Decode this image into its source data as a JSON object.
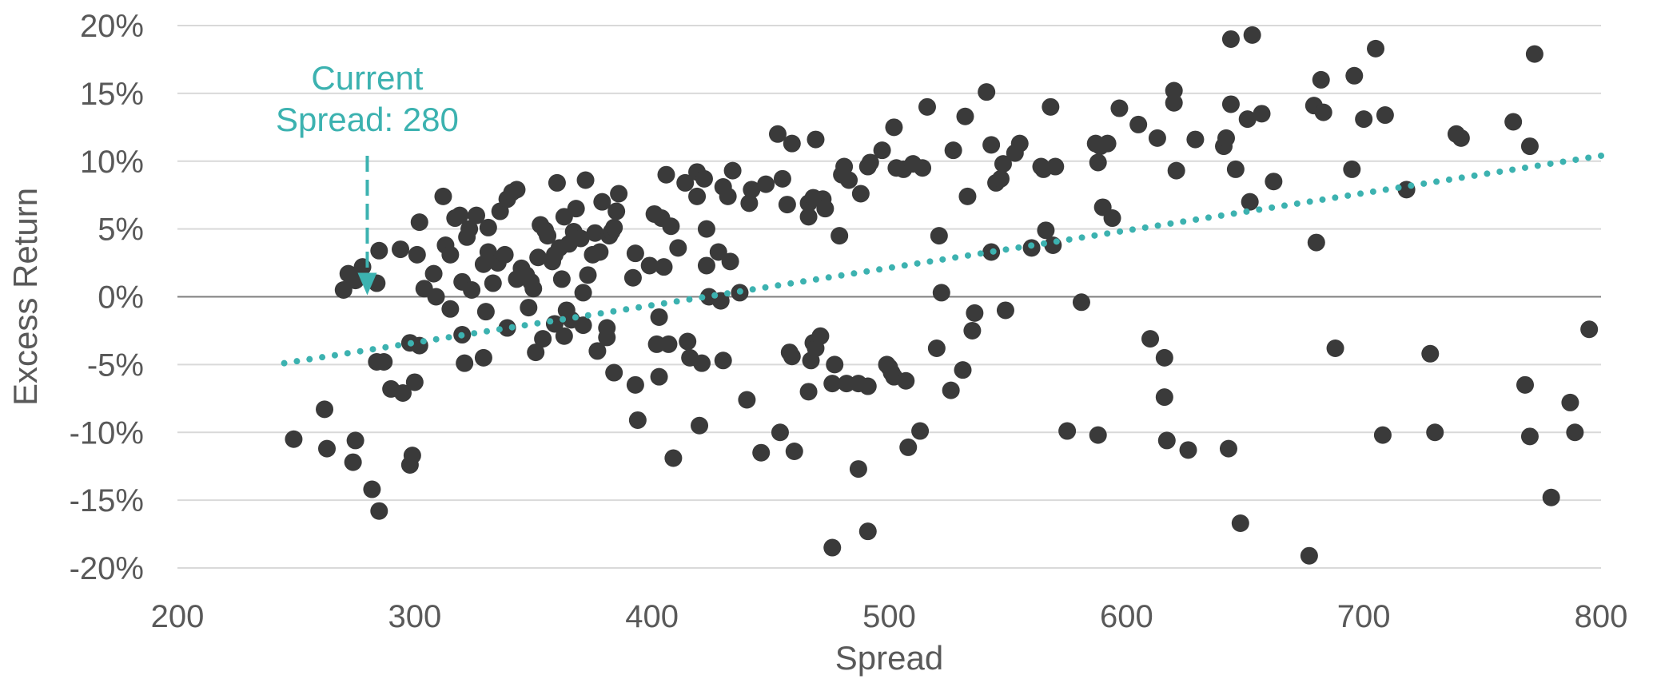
{
  "chart_data": {
    "type": "scatter",
    "title": "",
    "xlabel": "Spread",
    "ylabel": "Excess Return",
    "xlim": [
      200,
      800
    ],
    "ylim": [
      -20,
      20
    ],
    "x_ticks": [
      200,
      300,
      400,
      500,
      600,
      700,
      800
    ],
    "y_ticks": [
      20,
      15,
      10,
      5,
      0,
      -5,
      -10,
      -15,
      -20
    ],
    "y_tick_labels": [
      "20%",
      "15%",
      "10%",
      "5%",
      "0%",
      "-5%",
      "-10%",
      "-15%",
      "-20%"
    ],
    "grid": true,
    "colors": {
      "points": "#3a3a3a",
      "trend": "#3cb2b0",
      "grid": "#d9d9d9",
      "zero_line": "#7f7f7f",
      "annotation": "#3cb2b0",
      "text": "#595959"
    },
    "annotation": {
      "lines": [
        "Current",
        "Spread: 280"
      ],
      "x": 280,
      "arrow_from_y": 10,
      "arrow_to_y": 0
    },
    "trendline": {
      "style": "dotted",
      "x": [
        245,
        800
      ],
      "y": [
        -4.9,
        10.4
      ]
    },
    "points": [
      {
        "x": 270,
        "y": 0.5
      },
      {
        "x": 272,
        "y": 1.7
      },
      {
        "x": 275,
        "y": 1.2
      },
      {
        "x": 278,
        "y": 2.2
      },
      {
        "x": 284,
        "y": 1.0
      },
      {
        "x": 285,
        "y": 3.4
      },
      {
        "x": 294,
        "y": 3.5
      },
      {
        "x": 301,
        "y": 3.1
      },
      {
        "x": 302,
        "y": 5.5
      },
      {
        "x": 304,
        "y": 0.6
      },
      {
        "x": 308,
        "y": 1.7
      },
      {
        "x": 309,
        "y": 0.0
      },
      {
        "x": 312,
        "y": 7.4
      },
      {
        "x": 313,
        "y": 3.8
      },
      {
        "x": 315,
        "y": 3.1
      },
      {
        "x": 317,
        "y": 5.8
      },
      {
        "x": 319,
        "y": 6.0
      },
      {
        "x": 320,
        "y": 1.1
      },
      {
        "x": 322,
        "y": 4.4
      },
      {
        "x": 323,
        "y": 5.0
      },
      {
        "x": 324,
        "y": 0.5
      },
      {
        "x": 326,
        "y": 6.0
      },
      {
        "x": 329,
        "y": 2.4
      },
      {
        "x": 331,
        "y": 3.3
      },
      {
        "x": 331,
        "y": 5.1
      },
      {
        "x": 333,
        "y": 1.0
      },
      {
        "x": 335,
        "y": 2.5
      },
      {
        "x": 336,
        "y": 6.3
      },
      {
        "x": 338,
        "y": 3.1
      },
      {
        "x": 339,
        "y": 7.2
      },
      {
        "x": 341,
        "y": 7.7
      },
      {
        "x": 343,
        "y": 7.9
      },
      {
        "x": 343,
        "y": 1.3
      },
      {
        "x": 345,
        "y": 2.1
      },
      {
        "x": 347,
        "y": 1.6
      },
      {
        "x": 348,
        "y": -0.8
      },
      {
        "x": 349,
        "y": 1.1
      },
      {
        "x": 350,
        "y": 0.6
      },
      {
        "x": 352,
        "y": 2.9
      },
      {
        "x": 353,
        "y": 5.3
      },
      {
        "x": 355,
        "y": 4.9
      },
      {
        "x": 356,
        "y": 4.5
      },
      {
        "x": 358,
        "y": 2.6
      },
      {
        "x": 359,
        "y": 3.1
      },
      {
        "x": 360,
        "y": 8.4
      },
      {
        "x": 361,
        "y": 3.6
      },
      {
        "x": 362,
        "y": 1.3
      },
      {
        "x": 363,
        "y": 5.9
      },
      {
        "x": 364,
        "y": -1.0
      },
      {
        "x": 365,
        "y": 3.9
      },
      {
        "x": 366,
        "y": -1.7
      },
      {
        "x": 367,
        "y": 4.8
      },
      {
        "x": 368,
        "y": 6.5
      },
      {
        "x": 370,
        "y": 4.3
      },
      {
        "x": 371,
        "y": -2.1
      },
      {
        "x": 371,
        "y": 0.3
      },
      {
        "x": 372,
        "y": 8.6
      },
      {
        "x": 373,
        "y": 1.6
      },
      {
        "x": 375,
        "y": 3.1
      },
      {
        "x": 376,
        "y": 4.7
      },
      {
        "x": 377,
        "y": -4.0
      },
      {
        "x": 378,
        "y": 3.3
      },
      {
        "x": 379,
        "y": 7.0
      },
      {
        "x": 381,
        "y": -2.3
      },
      {
        "x": 381,
        "y": -3.0
      },
      {
        "x": 382,
        "y": 4.5
      },
      {
        "x": 383,
        "y": 4.8
      },
      {
        "x": 384,
        "y": 5.1
      },
      {
        "x": 385,
        "y": 6.3
      },
      {
        "x": 386,
        "y": 7.6
      },
      {
        "x": 384,
        "y": -5.6
      },
      {
        "x": 392,
        "y": 1.4
      },
      {
        "x": 393,
        "y": 3.2
      },
      {
        "x": 393,
        "y": -6.5
      },
      {
        "x": 394,
        "y": -9.1
      },
      {
        "x": 399,
        "y": 2.3
      },
      {
        "x": 401,
        "y": 6.1
      },
      {
        "x": 402,
        "y": -3.5
      },
      {
        "x": 403,
        "y": -1.5
      },
      {
        "x": 403,
        "y": -5.9
      },
      {
        "x": 404,
        "y": 5.8
      },
      {
        "x": 405,
        "y": 2.2
      },
      {
        "x": 406,
        "y": 9.0
      },
      {
        "x": 407,
        "y": -3.5
      },
      {
        "x": 408,
        "y": 5.2
      },
      {
        "x": 409,
        "y": -11.9
      },
      {
        "x": 411,
        "y": 3.6
      },
      {
        "x": 414,
        "y": 8.4
      },
      {
        "x": 415,
        "y": -3.3
      },
      {
        "x": 416,
        "y": -4.5
      },
      {
        "x": 419,
        "y": 9.2
      },
      {
        "x": 419,
        "y": 7.4
      },
      {
        "x": 420,
        "y": -9.5
      },
      {
        "x": 421,
        "y": -4.9
      },
      {
        "x": 422,
        "y": 8.7
      },
      {
        "x": 423,
        "y": 2.3
      },
      {
        "x": 423,
        "y": 5.0
      },
      {
        "x": 424,
        "y": 0.0
      },
      {
        "x": 428,
        "y": 3.3
      },
      {
        "x": 429,
        "y": -0.3
      },
      {
        "x": 430,
        "y": -4.7
      },
      {
        "x": 430,
        "y": 8.1
      },
      {
        "x": 432,
        "y": 7.4
      },
      {
        "x": 433,
        "y": 2.6
      },
      {
        "x": 434,
        "y": 9.3
      },
      {
        "x": 437,
        "y": 0.3
      },
      {
        "x": 440,
        "y": -7.6
      },
      {
        "x": 441,
        "y": 6.9
      },
      {
        "x": 442,
        "y": 7.9
      },
      {
        "x": 446,
        "y": -11.5
      },
      {
        "x": 448,
        "y": 8.3
      },
      {
        "x": 453,
        "y": 12.0
      },
      {
        "x": 454,
        "y": -10.0
      },
      {
        "x": 455,
        "y": 8.7
      },
      {
        "x": 457,
        "y": 6.8
      },
      {
        "x": 458,
        "y": -4.1
      },
      {
        "x": 459,
        "y": 11.3
      },
      {
        "x": 459,
        "y": -4.4
      },
      {
        "x": 460,
        "y": -11.4
      },
      {
        "x": 466,
        "y": 6.9
      },
      {
        "x": 466,
        "y": 5.9
      },
      {
        "x": 466,
        "y": -7.0
      },
      {
        "x": 467,
        "y": -4.7
      },
      {
        "x": 468,
        "y": 7.3
      },
      {
        "x": 468,
        "y": -3.4
      },
      {
        "x": 469,
        "y": 11.6
      },
      {
        "x": 469,
        "y": -3.8
      },
      {
        "x": 471,
        "y": -2.9
      },
      {
        "x": 472,
        "y": 7.2
      },
      {
        "x": 473,
        "y": 6.5
      },
      {
        "x": 476,
        "y": -6.4
      },
      {
        "x": 476,
        "y": -18.5
      },
      {
        "x": 477,
        "y": -5.0
      },
      {
        "x": 479,
        "y": 4.5
      },
      {
        "x": 480,
        "y": 9.0
      },
      {
        "x": 481,
        "y": 9.6
      },
      {
        "x": 482,
        "y": -6.4
      },
      {
        "x": 483,
        "y": 8.6
      },
      {
        "x": 487,
        "y": -12.7
      },
      {
        "x": 487,
        "y": -6.4
      },
      {
        "x": 488,
        "y": 7.6
      },
      {
        "x": 491,
        "y": -6.6
      },
      {
        "x": 491,
        "y": -17.3
      },
      {
        "x": 491,
        "y": 9.6
      },
      {
        "x": 492,
        "y": 9.9
      },
      {
        "x": 497,
        "y": 10.8
      },
      {
        "x": 499,
        "y": -5.0
      },
      {
        "x": 500,
        "y": -5.2
      },
      {
        "x": 501,
        "y": -5.6
      },
      {
        "x": 502,
        "y": 12.5
      },
      {
        "x": 502,
        "y": -5.9
      },
      {
        "x": 503,
        "y": 9.5
      },
      {
        "x": 506,
        "y": 9.4
      },
      {
        "x": 507,
        "y": -6.2
      },
      {
        "x": 508,
        "y": -11.1
      },
      {
        "x": 510,
        "y": 9.8
      },
      {
        "x": 513,
        "y": -9.9
      },
      {
        "x": 514,
        "y": 9.5
      },
      {
        "x": 516,
        "y": 14.0
      },
      {
        "x": 520,
        "y": -3.8
      },
      {
        "x": 521,
        "y": 4.5
      },
      {
        "x": 522,
        "y": 0.3
      },
      {
        "x": 526,
        "y": -6.9
      },
      {
        "x": 527,
        "y": 10.8
      },
      {
        "x": 531,
        "y": -5.4
      },
      {
        "x": 532,
        "y": 13.3
      },
      {
        "x": 533,
        "y": 7.4
      },
      {
        "x": 535,
        "y": -2.5
      },
      {
        "x": 536,
        "y": -1.2
      },
      {
        "x": 541,
        "y": 15.1
      },
      {
        "x": 543,
        "y": 11.2
      },
      {
        "x": 543,
        "y": 3.3
      },
      {
        "x": 545,
        "y": 8.4
      },
      {
        "x": 547,
        "y": 8.7
      },
      {
        "x": 548,
        "y": 9.8
      },
      {
        "x": 549,
        "y": -1.0
      },
      {
        "x": 553,
        "y": 10.6
      },
      {
        "x": 555,
        "y": 11.3
      },
      {
        "x": 560,
        "y": 3.6
      },
      {
        "x": 564,
        "y": 9.6
      },
      {
        "x": 565,
        "y": 9.4
      },
      {
        "x": 566,
        "y": 4.9
      },
      {
        "x": 568,
        "y": 14.0
      },
      {
        "x": 569,
        "y": 3.8
      },
      {
        "x": 570,
        "y": 9.6
      },
      {
        "x": 575,
        "y": -9.9
      },
      {
        "x": 581,
        "y": -0.4
      },
      {
        "x": 587,
        "y": 11.3
      },
      {
        "x": 588,
        "y": 9.9
      },
      {
        "x": 588,
        "y": -10.2
      },
      {
        "x": 589,
        "y": 11.1
      },
      {
        "x": 590,
        "y": 6.6
      },
      {
        "x": 592,
        "y": 11.3
      },
      {
        "x": 594,
        "y": 5.8
      },
      {
        "x": 597,
        "y": 13.9
      },
      {
        "x": 605,
        "y": 12.7
      },
      {
        "x": 610,
        "y": -3.1
      },
      {
        "x": 613,
        "y": 11.7
      },
      {
        "x": 616,
        "y": -4.5
      },
      {
        "x": 616,
        "y": -7.4
      },
      {
        "x": 617,
        "y": -10.6
      },
      {
        "x": 620,
        "y": 15.2
      },
      {
        "x": 620,
        "y": 14.3
      },
      {
        "x": 621,
        "y": 9.3
      },
      {
        "x": 626,
        "y": -11.3
      },
      {
        "x": 629,
        "y": 11.6
      },
      {
        "x": 641,
        "y": 11.1
      },
      {
        "x": 642,
        "y": 11.7
      },
      {
        "x": 643,
        "y": -11.2
      },
      {
        "x": 644,
        "y": 19.0
      },
      {
        "x": 644,
        "y": 14.2
      },
      {
        "x": 646,
        "y": 9.4
      },
      {
        "x": 648,
        "y": -16.7
      },
      {
        "x": 651,
        "y": 13.1
      },
      {
        "x": 652,
        "y": 7.0
      },
      {
        "x": 653,
        "y": 19.3
      },
      {
        "x": 657,
        "y": 13.5
      },
      {
        "x": 662,
        "y": 8.5
      },
      {
        "x": 677,
        "y": -19.1
      },
      {
        "x": 679,
        "y": 14.1
      },
      {
        "x": 680,
        "y": 4.0
      },
      {
        "x": 682,
        "y": 16.0
      },
      {
        "x": 683,
        "y": 13.6
      },
      {
        "x": 688,
        "y": -3.8
      },
      {
        "x": 695,
        "y": 9.4
      },
      {
        "x": 696,
        "y": 16.3
      },
      {
        "x": 700,
        "y": 13.1
      },
      {
        "x": 705,
        "y": 18.3
      },
      {
        "x": 708,
        "y": -10.2
      },
      {
        "x": 709,
        "y": 13.4
      },
      {
        "x": 718,
        "y": 7.9
      },
      {
        "x": 728,
        "y": -4.2
      },
      {
        "x": 730,
        "y": -10.0
      },
      {
        "x": 739,
        "y": 12.0
      },
      {
        "x": 741,
        "y": 11.7
      },
      {
        "x": 763,
        "y": 12.9
      },
      {
        "x": 768,
        "y": -6.5
      },
      {
        "x": 770,
        "y": 11.1
      },
      {
        "x": 770,
        "y": -10.3
      },
      {
        "x": 772,
        "y": 17.9
      },
      {
        "x": 779,
        "y": -14.8
      },
      {
        "x": 787,
        "y": -7.8
      },
      {
        "x": 789,
        "y": -10.0
      },
      {
        "x": 795,
        "y": -2.4
      },
      {
        "x": 275,
        "y": -10.6
      },
      {
        "x": 263,
        "y": -11.2
      },
      {
        "x": 262,
        "y": -8.3
      },
      {
        "x": 249,
        "y": -10.5
      },
      {
        "x": 274,
        "y": -12.2
      },
      {
        "x": 282,
        "y": -14.2
      },
      {
        "x": 285,
        "y": -15.8
      },
      {
        "x": 284,
        "y": -4.8
      },
      {
        "x": 287,
        "y": -4.8
      },
      {
        "x": 290,
        "y": -6.8
      },
      {
        "x": 295,
        "y": -7.1
      },
      {
        "x": 298,
        "y": -12.4
      },
      {
        "x": 299,
        "y": -11.7
      },
      {
        "x": 300,
        "y": -6.3
      },
      {
        "x": 298,
        "y": -3.4
      },
      {
        "x": 302,
        "y": -3.6
      },
      {
        "x": 315,
        "y": -0.9
      },
      {
        "x": 320,
        "y": -2.8
      },
      {
        "x": 321,
        "y": -4.9
      },
      {
        "x": 329,
        "y": -4.5
      },
      {
        "x": 330,
        "y": -1.1
      },
      {
        "x": 339,
        "y": -2.3
      },
      {
        "x": 351,
        "y": -4.1
      },
      {
        "x": 354,
        "y": -3.1
      },
      {
        "x": 359,
        "y": -2.0
      },
      {
        "x": 363,
        "y": -2.9
      }
    ]
  }
}
